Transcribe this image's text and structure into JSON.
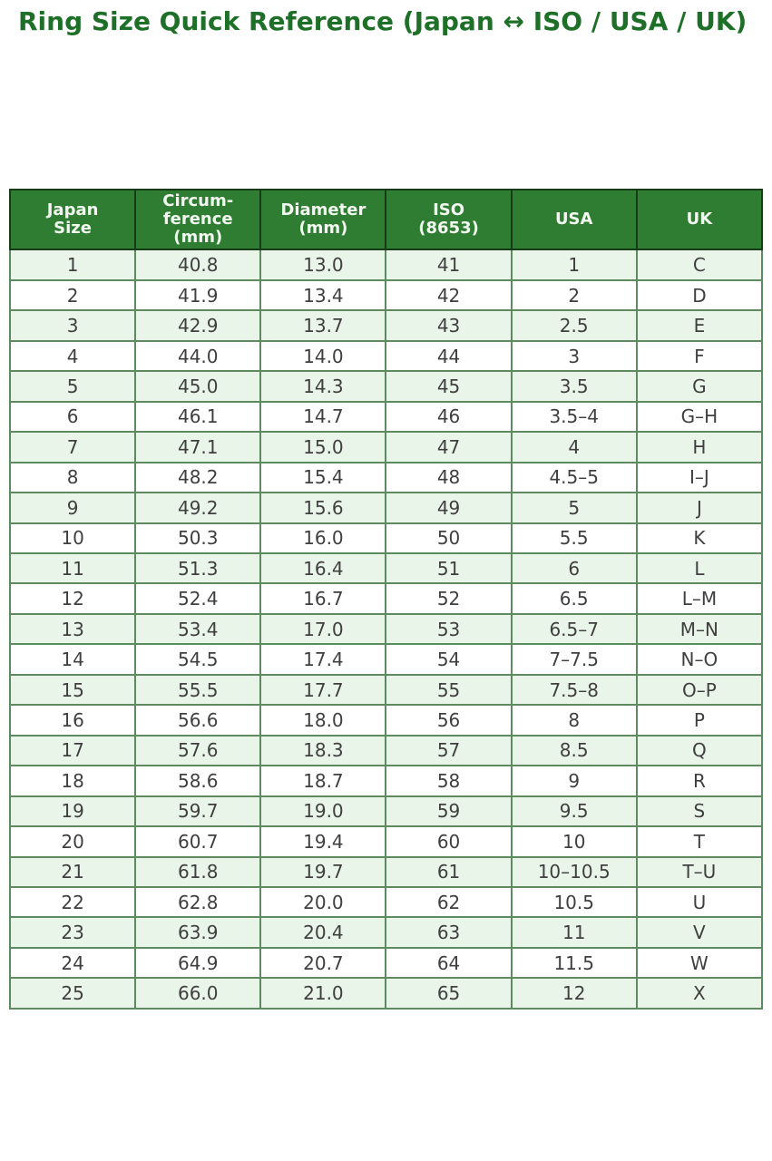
{
  "title": "Ring Size Quick Reference (Japan ↔ ISO / USA / UK)",
  "colors": {
    "title_text": "#1e6f27",
    "header_bg": "#2e7d32",
    "header_text": "#f2f8f0",
    "row_alt_bg": "#eaf5ea",
    "row_bg": "#ffffff",
    "grid_line": "#5d8a5f",
    "outer_border": "#1d3b1f",
    "body_text": "#3f3f3f"
  },
  "chart_data": {
    "type": "table",
    "title": "Ring Size Quick Reference (Japan ↔ ISO / USA / UK)",
    "columns": [
      "Japan\nSize",
      "Circum-\nference\n(mm)",
      "Diameter\n(mm)",
      "ISO\n(8653)",
      "USA",
      "UK"
    ],
    "column_names_plain": [
      "Japan Size",
      "Circumference (mm)",
      "Diameter (mm)",
      "ISO (8653)",
      "USA",
      "UK"
    ],
    "rows": [
      [
        "1",
        "40.8",
        "13.0",
        "41",
        "1",
        "C"
      ],
      [
        "2",
        "41.9",
        "13.4",
        "42",
        "2",
        "D"
      ],
      [
        "3",
        "42.9",
        "13.7",
        "43",
        "2.5",
        "E"
      ],
      [
        "4",
        "44.0",
        "14.0",
        "44",
        "3",
        "F"
      ],
      [
        "5",
        "45.0",
        "14.3",
        "45",
        "3.5",
        "G"
      ],
      [
        "6",
        "46.1",
        "14.7",
        "46",
        "3.5–4",
        "G–H"
      ],
      [
        "7",
        "47.1",
        "15.0",
        "47",
        "4",
        "H"
      ],
      [
        "8",
        "48.2",
        "15.4",
        "48",
        "4.5–5",
        "I–J"
      ],
      [
        "9",
        "49.2",
        "15.6",
        "49",
        "5",
        "J"
      ],
      [
        "10",
        "50.3",
        "16.0",
        "50",
        "5.5",
        "K"
      ],
      [
        "11",
        "51.3",
        "16.4",
        "51",
        "6",
        "L"
      ],
      [
        "12",
        "52.4",
        "16.7",
        "52",
        "6.5",
        "L–M"
      ],
      [
        "13",
        "53.4",
        "17.0",
        "53",
        "6.5–7",
        "M–N"
      ],
      [
        "14",
        "54.5",
        "17.4",
        "54",
        "7–7.5",
        "N–O"
      ],
      [
        "15",
        "55.5",
        "17.7",
        "55",
        "7.5–8",
        "O–P"
      ],
      [
        "16",
        "56.6",
        "18.0",
        "56",
        "8",
        "P"
      ],
      [
        "17",
        "57.6",
        "18.3",
        "57",
        "8.5",
        "Q"
      ],
      [
        "18",
        "58.6",
        "18.7",
        "58",
        "9",
        "R"
      ],
      [
        "19",
        "59.7",
        "19.0",
        "59",
        "9.5",
        "S"
      ],
      [
        "20",
        "60.7",
        "19.4",
        "60",
        "10",
        "T"
      ],
      [
        "21",
        "61.8",
        "19.7",
        "61",
        "10–10.5",
        "T–U"
      ],
      [
        "22",
        "62.8",
        "20.0",
        "62",
        "10.5",
        "U"
      ],
      [
        "23",
        "63.9",
        "20.4",
        "63",
        "11",
        "V"
      ],
      [
        "24",
        "64.9",
        "20.7",
        "64",
        "11.5",
        "W"
      ],
      [
        "25",
        "66.0",
        "21.0",
        "65",
        "12",
        "X"
      ]
    ]
  }
}
